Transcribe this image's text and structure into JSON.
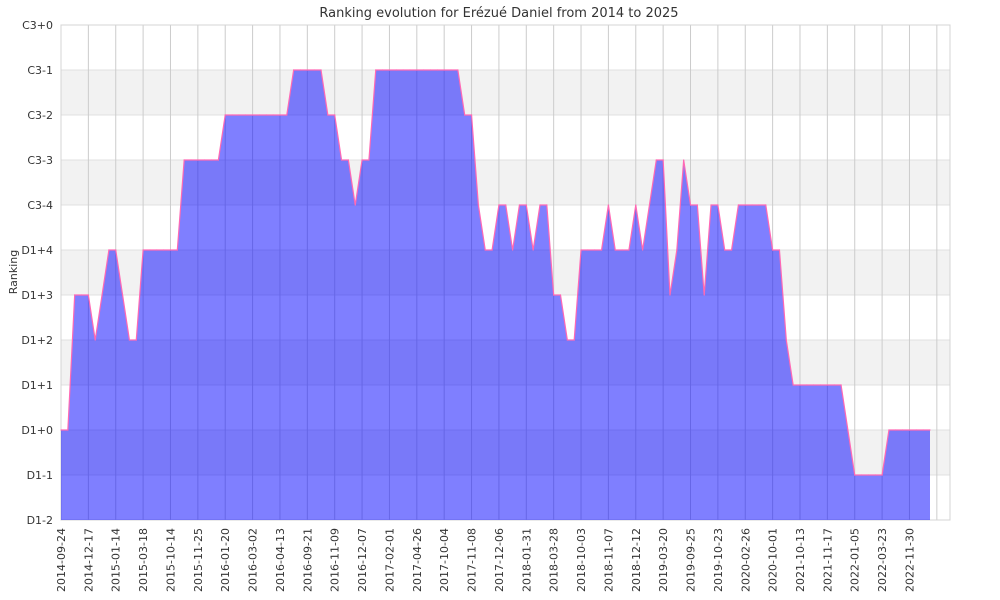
{
  "chart_data": {
    "type": "area",
    "title": "Ranking evolution for Erézué Daniel from 2014 to 2025",
    "xlabel": "",
    "ylabel": "Ranking",
    "y_ticks": [
      "D1-2",
      "D1-1",
      "D1+0",
      "D1+1",
      "D1+2",
      "D1+3",
      "D1+4",
      "C3-4",
      "C3-3",
      "C3-2",
      "C3-1",
      "C3+0"
    ],
    "x_labels": [
      "2014-09-24",
      "2014-12-17",
      "2015-01-14",
      "2015-03-18",
      "2015-10-14",
      "2015-11-25",
      "2016-01-20",
      "2016-03-02",
      "2016-04-13",
      "2016-09-21",
      "2016-11-09",
      "2016-12-07",
      "2017-02-01",
      "2017-04-26",
      "2017-10-04",
      "2017-11-08",
      "2017-12-06",
      "2018-01-31",
      "2018-03-28",
      "2018-10-03",
      "2018-11-07",
      "2018-12-12",
      "2019-03-20",
      "2019-09-25",
      "2019-10-23",
      "2020-02-26",
      "2020-10-01",
      "2021-10-13",
      "2021-11-17",
      "2022-01-05",
      "2022-03-23",
      "2022-11-30"
    ],
    "points_per_label": 4,
    "values_note": "values are indices into y_ticks, one per tournament",
    "values": [
      2,
      2,
      5,
      5,
      5,
      4,
      5,
      6,
      6,
      5,
      4,
      4,
      6,
      6,
      6,
      6,
      6,
      6,
      8,
      8,
      8,
      8,
      8,
      8,
      9,
      9,
      9,
      9,
      9,
      9,
      9,
      9,
      9,
      9,
      10,
      10,
      10,
      10,
      10,
      9,
      9,
      8,
      8,
      7,
      8,
      8,
      10,
      10,
      10,
      10,
      10,
      10,
      10,
      10,
      10,
      10,
      10,
      10,
      10,
      9,
      9,
      7,
      6,
      6,
      7,
      7,
      6,
      7,
      7,
      6,
      7,
      7,
      5,
      5,
      4,
      4,
      6,
      6,
      6,
      6,
      7,
      6,
      6,
      6,
      7,
      6,
      7,
      8,
      8,
      5,
      6,
      8,
      7,
      7,
      5,
      7,
      7,
      6,
      6,
      7,
      7,
      7,
      7,
      7,
      6,
      6,
      4,
      3,
      3,
      3,
      3,
      3,
      3,
      3,
      3,
      2,
      1,
      1,
      1,
      1,
      1,
      2,
      2,
      2,
      2,
      2,
      2,
      2
    ],
    "ylim": [
      "D1-2",
      "C3+0"
    ],
    "grid": true,
    "colors": {
      "fill": "#0000ff",
      "line": "#ff69b4",
      "band": "#f2f2f2",
      "grid": "#cccccc"
    }
  }
}
